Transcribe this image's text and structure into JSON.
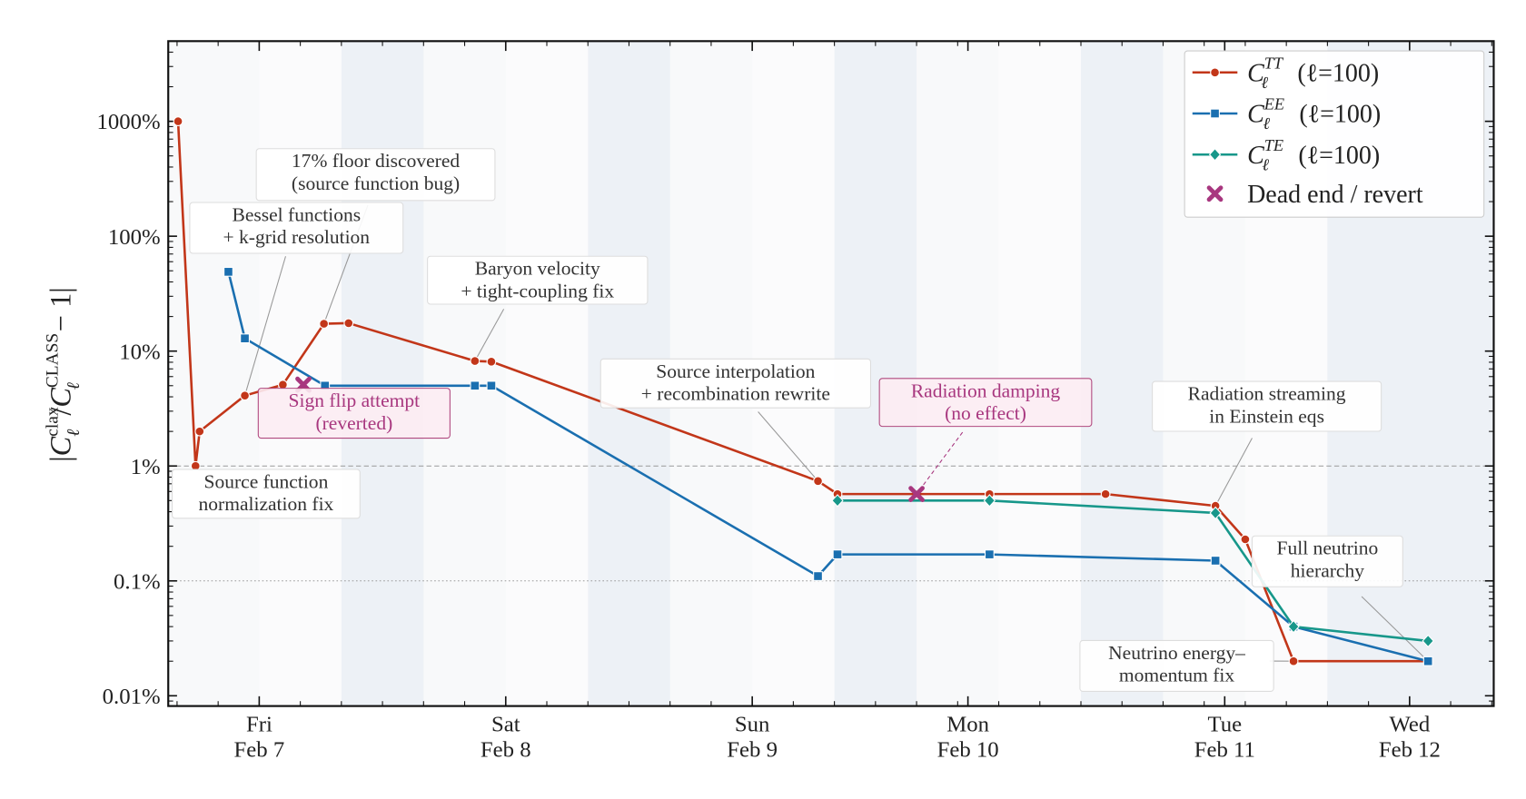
{
  "chart_data": {
    "type": "line",
    "title": "",
    "xlabel": "",
    "ylabel": {
      "prefix": "|",
      "symbol": "C",
      "sub": "ℓ",
      "sup_num": "clax",
      "slash": "/",
      "sup_den": "CLASS",
      "suffix": "− 1|"
    },
    "y_scale": "log",
    "y_unit": "%",
    "ylim": [
      0.008,
      5000
    ],
    "y_ticks": [
      {
        "value": 1000,
        "label": "1000%"
      },
      {
        "value": 100,
        "label": "100%"
      },
      {
        "value": 10,
        "label": "10%"
      },
      {
        "value": 1,
        "label": "1%"
      },
      {
        "value": 0.1,
        "label": "0.1%"
      },
      {
        "value": 0.01,
        "label": "0.01%"
      }
    ],
    "reference_lines": [
      {
        "value": 1,
        "style": "dashed"
      },
      {
        "value": 0.1,
        "style": "dotted"
      }
    ],
    "x_ticks": [
      {
        "t": "02-07T16:00",
        "day": "Fri",
        "date": "Feb 7"
      },
      {
        "t": "02-08T16:00",
        "day": "Sat",
        "date": "Feb 8"
      },
      {
        "t": "02-09T16:00",
        "day": "Sun",
        "date": "Feb 9"
      },
      {
        "t": "02-10T13:00",
        "day": "Mon",
        "date": "Feb 10"
      },
      {
        "t": "02-11T14:00",
        "day": "Tue",
        "date": "Feb 11"
      },
      {
        "t": "02-12T08:00",
        "day": "Wed",
        "date": "Feb 12"
      }
    ],
    "shaded_night_bands": true,
    "legend_position": "top-right",
    "series": [
      {
        "key": "TT",
        "name": "C_ℓ^TT (ℓ=100)",
        "sup": "TT",
        "color": "#c23619",
        "marker": "circle",
        "x": [
          "02-07T08:06",
          "02-07T09:48",
          "02-07T10:12",
          "02-07T14:36",
          "02-07T18:18",
          "02-07T22:18",
          "02-08T00:42",
          "02-08T13:00",
          "02-08T14:36",
          "02-09T22:24",
          "02-10T00:18",
          "02-10T15:06",
          "02-11T02:24",
          "02-11T13:06",
          "02-11T16:00",
          "02-11T20:42",
          "02-12T09:48"
        ],
        "y": [
          1000,
          1.0,
          2.0,
          4.1,
          5.1,
          17.3,
          17.5,
          8.2,
          8.1,
          0.74,
          0.57,
          0.57,
          0.57,
          0.45,
          0.23,
          0.02,
          0.02
        ]
      },
      {
        "key": "EE",
        "name": "C_ℓ^EE (ℓ=100)",
        "sup": "EE",
        "color": "#1a6fb0",
        "marker": "square",
        "x": [
          "02-07T13:00",
          "02-07T14:36",
          "02-07T22:24",
          "02-08T13:00",
          "02-08T14:36",
          "02-09T22:24",
          "02-10T00:18",
          "02-10T15:06",
          "02-11T13:06",
          "02-11T20:42",
          "02-12T09:48"
        ],
        "y": [
          49,
          12.9,
          5.0,
          5.0,
          5.0,
          0.11,
          0.17,
          0.17,
          0.15,
          0.04,
          0.02
        ]
      },
      {
        "key": "TE",
        "name": "C_ℓ^TE (ℓ=100)",
        "sup": "TE",
        "color": "#17978a",
        "marker": "diamond",
        "x": [
          "02-10T00:18",
          "02-10T15:06",
          "02-11T13:06",
          "02-11T20:42",
          "02-12T09:48"
        ],
        "y": [
          0.5,
          0.5,
          0.39,
          0.04,
          0.03
        ]
      }
    ],
    "dead_ends": {
      "name": "Dead end / revert",
      "color": "#a8377f",
      "marker": "x",
      "x": [
        "02-07T20:18",
        "02-10T08:00"
      ],
      "y": [
        5.1,
        0.57
      ]
    },
    "legend_suffix": "(ℓ=100)",
    "legend_symbol": "C",
    "legend_sub": "ℓ",
    "annotations": [
      {
        "lines": [
          "Source function",
          "normalization fix"
        ],
        "style": "normal"
      },
      {
        "lines": [
          "Bessel functions",
          "+ k-grid resolution"
        ],
        "style": "normal"
      },
      {
        "lines": [
          "17% floor discovered",
          "(source function bug)"
        ],
        "style": "normal"
      },
      {
        "lines": [
          "Sign flip attempt",
          "(reverted)"
        ],
        "style": "dead-end"
      },
      {
        "lines": [
          "Baryon velocity",
          "+ tight-coupling fix"
        ],
        "style": "normal"
      },
      {
        "lines": [
          "Source interpolation",
          "+ recombination rewrite"
        ],
        "style": "normal"
      },
      {
        "lines": [
          "Radiation damping",
          "(no effect)"
        ],
        "style": "dead-end"
      },
      {
        "lines": [
          "Radiation streaming",
          "in Einstein eqs"
        ],
        "style": "normal"
      },
      {
        "lines": [
          "Full neutrino",
          "hierarchy"
        ],
        "style": "normal"
      },
      {
        "lines": [
          "Neutrino energy–",
          "momentum fix"
        ],
        "style": "normal"
      }
    ]
  }
}
